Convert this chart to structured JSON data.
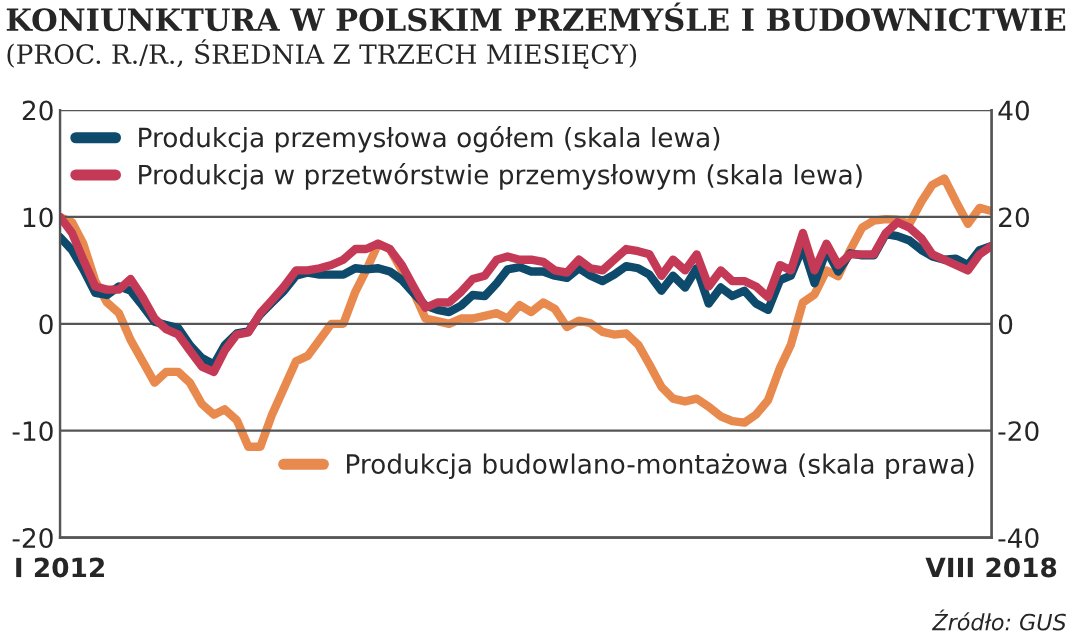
{
  "chart_data": {
    "type": "line",
    "title": "KONIUNKTURA W POLSKIM PRZEMYŚLE I BUDOWNICTWIE",
    "subtitle": "(PROC. R./R., ŚREDNIA Z TRZECH MIESIĘCY)",
    "annotations": [
      "Źródło: GUS"
    ],
    "x": [
      "2012-01",
      "2012-02",
      "2012-03",
      "2012-04",
      "2012-05",
      "2012-06",
      "2012-07",
      "2012-08",
      "2012-09",
      "2012-10",
      "2012-11",
      "2012-12",
      "2013-01",
      "2013-02",
      "2013-03",
      "2013-04",
      "2013-05",
      "2013-06",
      "2013-07",
      "2013-08",
      "2013-09",
      "2013-10",
      "2013-11",
      "2013-12",
      "2014-01",
      "2014-02",
      "2014-03",
      "2014-04",
      "2014-05",
      "2014-06",
      "2014-07",
      "2014-08",
      "2014-09",
      "2014-10",
      "2014-11",
      "2014-12",
      "2015-01",
      "2015-02",
      "2015-03",
      "2015-04",
      "2015-05",
      "2015-06",
      "2015-07",
      "2015-08",
      "2015-09",
      "2015-10",
      "2015-11",
      "2015-12",
      "2016-01",
      "2016-02",
      "2016-03",
      "2016-04",
      "2016-05",
      "2016-06",
      "2016-07",
      "2016-08",
      "2016-09",
      "2016-10",
      "2016-11",
      "2016-12",
      "2017-01",
      "2017-02",
      "2017-03",
      "2017-04",
      "2017-05",
      "2017-06",
      "2017-07",
      "2017-08",
      "2017-09",
      "2017-10",
      "2017-11",
      "2017-12",
      "2018-01",
      "2018-02",
      "2018-03",
      "2018-04",
      "2018-05",
      "2018-06",
      "2018-07",
      "2018-08"
    ],
    "xlim": [
      "2012-01",
      "2018-08"
    ],
    "xticks": [
      {
        "value": "2012-01",
        "label": "I 2012"
      },
      {
        "value": "2018-08",
        "label": "VIII 2018"
      }
    ],
    "ylim": [
      -20,
      20
    ],
    "yticks": [
      -20,
      -10,
      0,
      10,
      20
    ],
    "y2lim": [
      -40,
      40
    ],
    "y2ticks": [
      -40,
      -20,
      0,
      20,
      40
    ],
    "grid": "y",
    "legend": "top left",
    "series": [
      {
        "name": "Produkcja przemysłowa ogółem (skala lewa)",
        "color": "#0d4a6b",
        "values": [
          8.1,
          6.9,
          5.1,
          2.9,
          2.7,
          3.5,
          3.1,
          1.7,
          0.2,
          -0.1,
          -0.4,
          -2,
          -3.2,
          -3.8,
          -2,
          -0.9,
          -0.7,
          0.9,
          2,
          3.1,
          4.5,
          4.8,
          4.6,
          4.6,
          4.6,
          5.2,
          5.1,
          5.2,
          4.9,
          4.1,
          2.9,
          1.7,
          1.3,
          1.1,
          1.7,
          2.7,
          2.6,
          3.8,
          5.1,
          5.3,
          4.9,
          4.9,
          4.5,
          4.3,
          5.2,
          4.5,
          4,
          4.6,
          5.4,
          5.2,
          4.6,
          3.1,
          4.5,
          3.4,
          5.2,
          1.9,
          3.4,
          2.6,
          3.1,
          1.9,
          1.3,
          4.1,
          4.5,
          7.2,
          3.8,
          6.9,
          4.9,
          6.6,
          6.4,
          6.4,
          8.4,
          8.2,
          7.8,
          6.9,
          6.3,
          6,
          6.1,
          5.5,
          6.9,
          7.3
        ]
      },
      {
        "name": "Produkcja w przetwórstwie przemysłowym (skala lewa)",
        "color": "#c43a56",
        "values": [
          10,
          8.5,
          6,
          3.5,
          3.2,
          3.2,
          4.2,
          2.5,
          0.5,
          -0.5,
          -1,
          -2.5,
          -4,
          -4.5,
          -2.5,
          -1,
          -0.8,
          1,
          2.2,
          3.5,
          5,
          5,
          5.2,
          5.5,
          6,
          7,
          7,
          7.5,
          7,
          5.5,
          3.5,
          1.5,
          2,
          2,
          3,
          4.2,
          4.5,
          6,
          6.3,
          6,
          6,
          5.8,
          5,
          4.8,
          6,
          5.2,
          5,
          6,
          7,
          6.8,
          6.5,
          4.5,
          6,
          5,
          6.5,
          3.5,
          5,
          4,
          4,
          3.5,
          2.5,
          5.5,
          5,
          8.5,
          5,
          7.5,
          5.5,
          6.5,
          6.5,
          6.5,
          8.5,
          9.5,
          9,
          8,
          6.5,
          6,
          5.5,
          5,
          6.5,
          7.3
        ]
      },
      {
        "name": "Produkcja budowlano-montażowa (skala prawa)",
        "color": "#e8894e",
        "axis": "y2",
        "values": [
          20,
          19,
          15,
          8,
          4,
          2,
          -3,
          -7,
          -11,
          -9,
          -9,
          -11,
          -15,
          -17,
          -16,
          -18,
          -23,
          -23,
          -17,
          -12,
          -7,
          -6,
          -3,
          0,
          0,
          6,
          10,
          15,
          14,
          10,
          6,
          1,
          0.5,
          0,
          1,
          1,
          1.5,
          2,
          1,
          3.5,
          2.2,
          4,
          2.8,
          -0.6,
          0.6,
          0.1,
          -1.5,
          -2,
          -1.8,
          -3.9,
          -7.6,
          -11.8,
          -14,
          -14.5,
          -14,
          -15.5,
          -17.3,
          -18.2,
          -18.5,
          -17,
          -14.3,
          -8.2,
          -3.9,
          4,
          5.5,
          10,
          8.9,
          13.8,
          18,
          19.3,
          19.6,
          19.5,
          18.7,
          22.9,
          26,
          27.2,
          22.9,
          18.7,
          21.7,
          21.1
        ]
      }
    ]
  }
}
